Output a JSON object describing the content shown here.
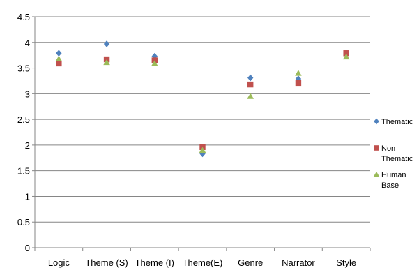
{
  "chart_data": {
    "type": "scatter",
    "categories": [
      "Logic",
      "Theme (S)",
      "Theme (I)",
      "Theme(E)",
      "Genre",
      "Narrator",
      "Style"
    ],
    "yticks": [
      "0",
      "0.5",
      "1",
      "1.5",
      "2",
      "2.5",
      "3",
      "3.5",
      "4",
      "4.5"
    ],
    "ylim": [
      0,
      4.5
    ],
    "grid": true,
    "legend_position": "right",
    "series": [
      {
        "name": "Thematic",
        "legend_lines": [
          "Thematic"
        ],
        "marker": "diamond",
        "color": "#4F81BD",
        "values": [
          3.79,
          3.97,
          3.73,
          1.83,
          3.31,
          3.29,
          3.79
        ]
      },
      {
        "name": "Non Thematic",
        "legend_lines": [
          "Non",
          "Thematic"
        ],
        "marker": "square",
        "color": "#C0504D",
        "values": [
          3.59,
          3.67,
          3.65,
          1.96,
          3.18,
          3.21,
          3.79
        ]
      },
      {
        "name": "Human Base",
        "legend_lines": [
          "Human",
          "Base"
        ],
        "marker": "triangle",
        "color": "#9BBB59",
        "values": [
          3.68,
          3.61,
          3.59,
          1.9,
          2.95,
          3.4,
          3.72
        ]
      }
    ]
  }
}
